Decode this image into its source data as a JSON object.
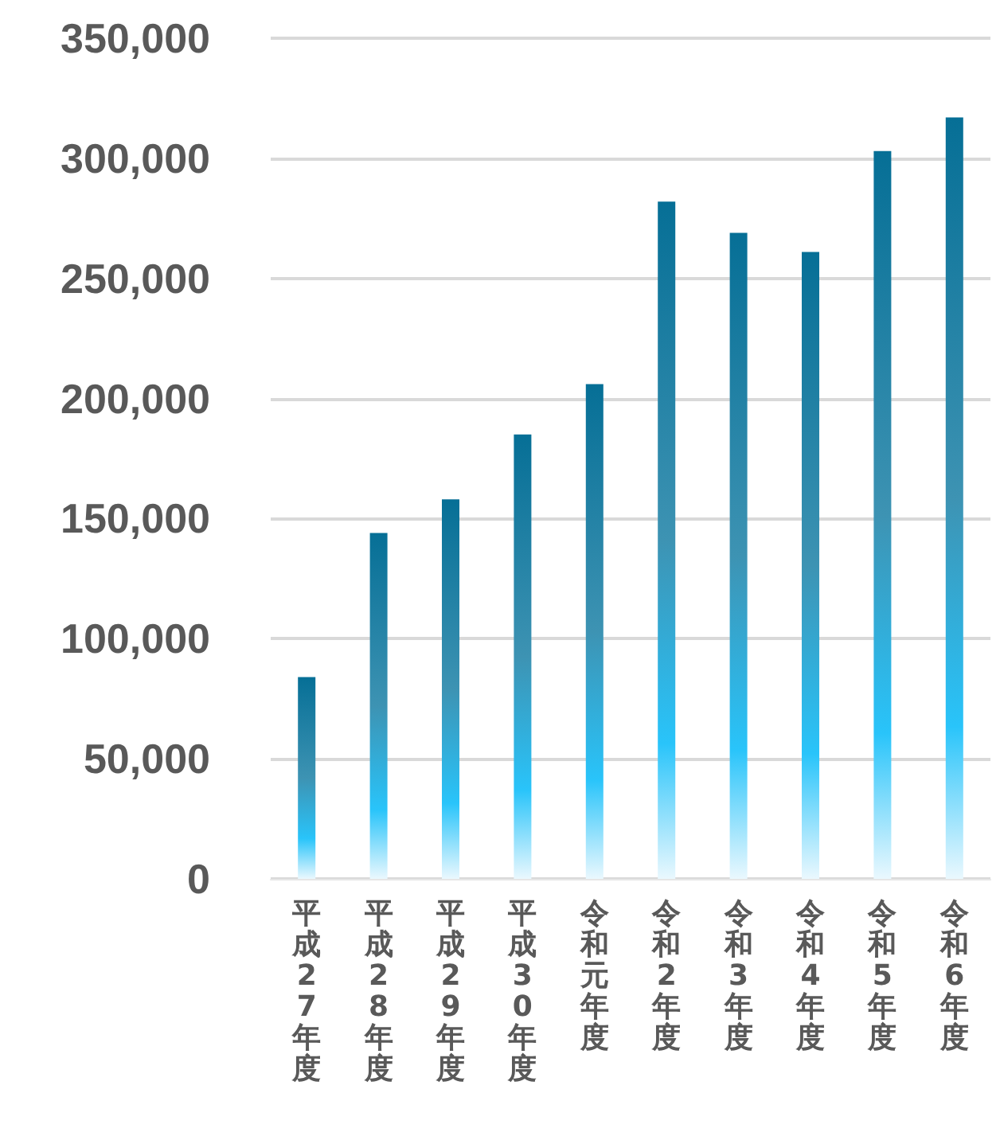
{
  "chart_data": {
    "type": "bar",
    "categories": [
      "平成27年度",
      "平成28年度",
      "平成29年度",
      "平成30年度",
      "令和元年度",
      "令和2年度",
      "令和3年度",
      "令和4年度",
      "令和5年度",
      "令和6年度"
    ],
    "values": [
      84000,
      144000,
      158000,
      185000,
      206000,
      282000,
      269000,
      261000,
      303000,
      317000
    ],
    "color": "#066f96",
    "ylim": [
      0,
      350000
    ],
    "yticks": [
      {
        "value": 0,
        "label": "0"
      },
      {
        "value": 50000,
        "label": "50,000"
      },
      {
        "value": 100000,
        "label": "100,000"
      },
      {
        "value": 150000,
        "label": "150,000"
      },
      {
        "value": 200000,
        "label": "200,000"
      },
      {
        "value": 250000,
        "label": "250,000"
      },
      {
        "value": 300000,
        "label": "300,000"
      },
      {
        "value": 350000,
        "label": "350,000"
      }
    ],
    "grid": "y"
  }
}
